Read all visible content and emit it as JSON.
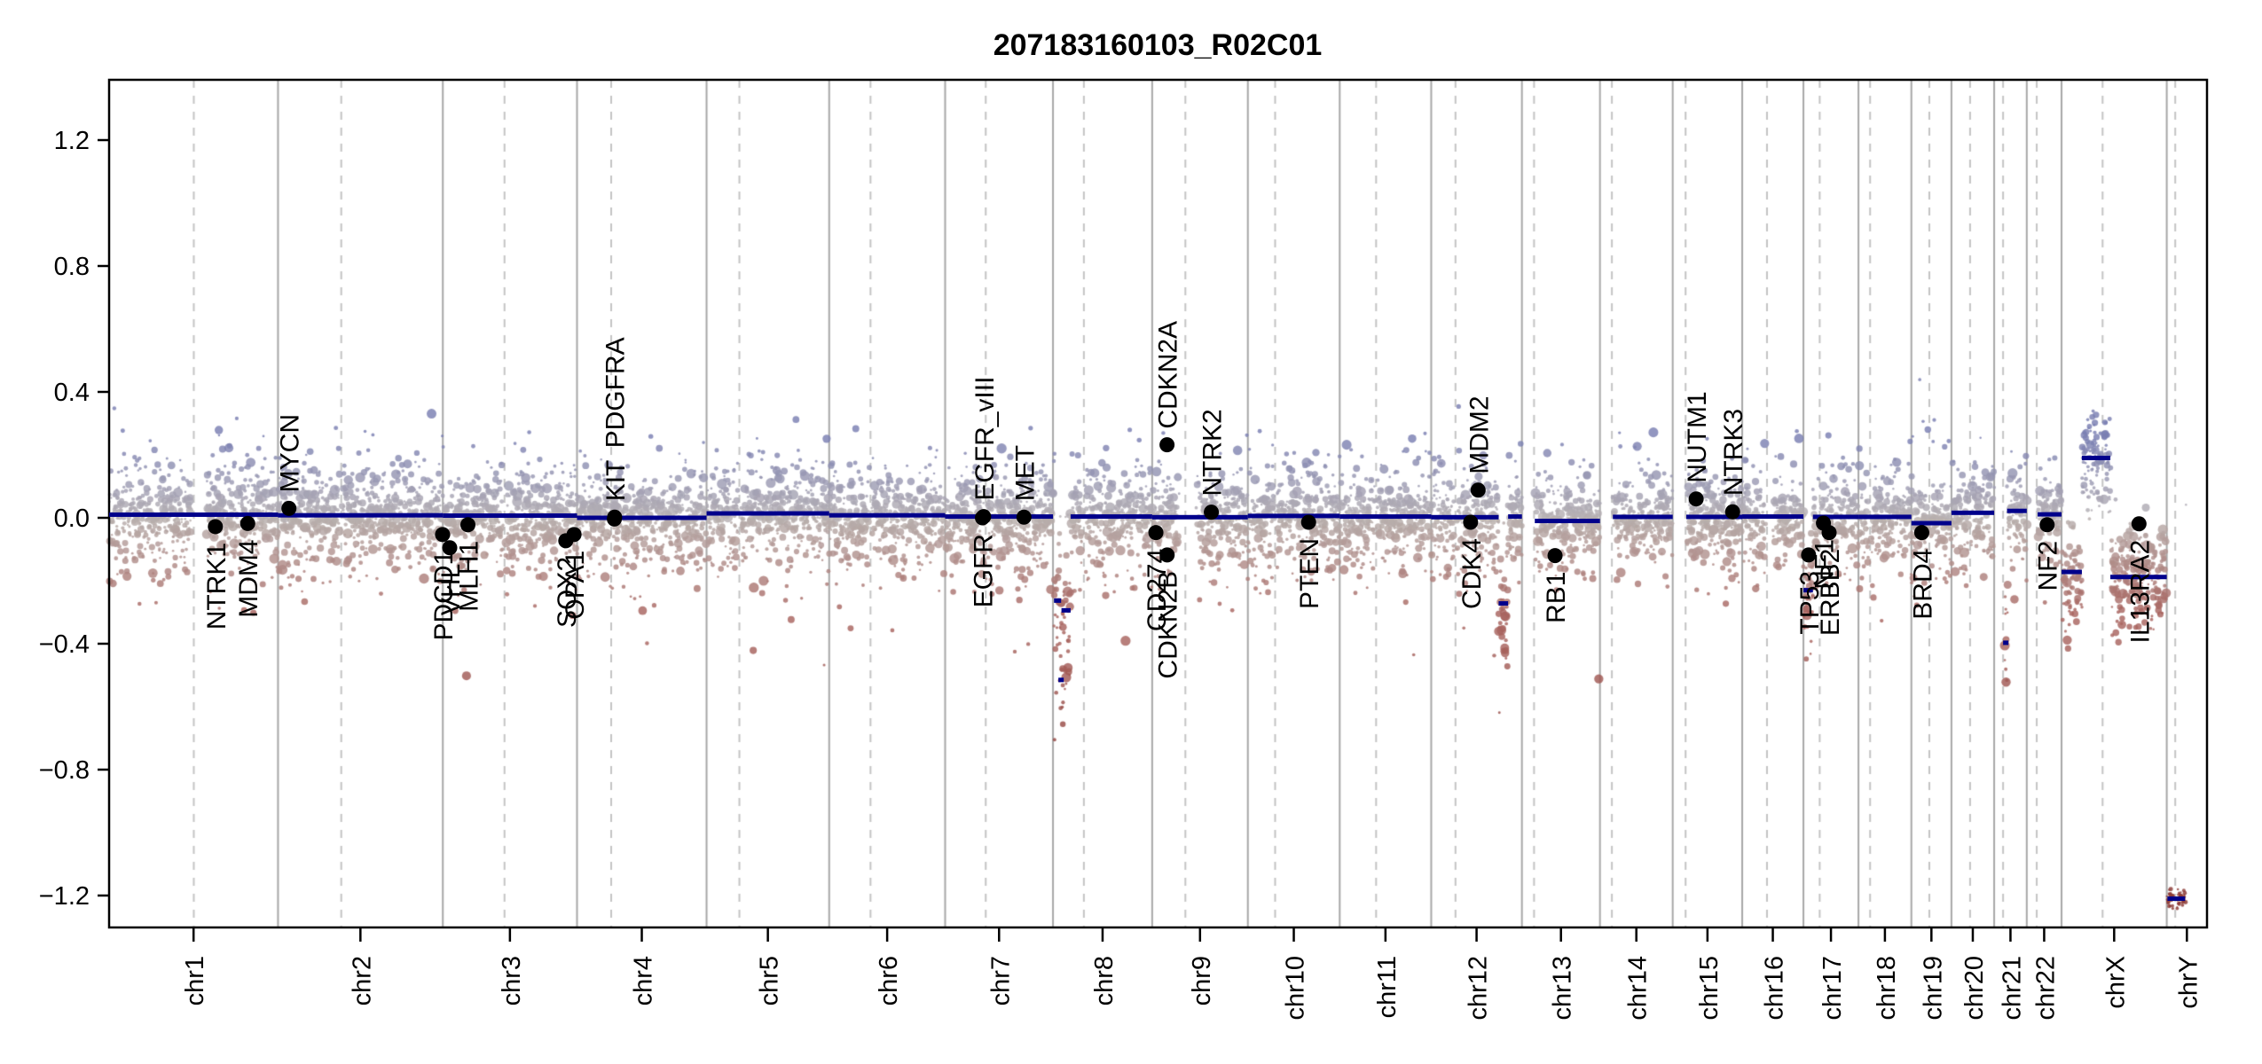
{
  "chart_data": {
    "type": "scatter",
    "title": "207183160103_R02C01",
    "xlabel": "",
    "ylabel": "",
    "ylim": [
      -1.35,
      1.35
    ],
    "grid": "chromosome-boundaries-solid, centromeres-dashed",
    "y_ticks": [
      {
        "label": "1.2",
        "value": 1.2
      },
      {
        "label": "0.8",
        "value": 0.8
      },
      {
        "label": "0.4",
        "value": 0.4
      },
      {
        "label": "0.0",
        "value": 0.0
      },
      {
        "label": "−0.4",
        "value": -0.4
      },
      {
        "label": "−0.8",
        "value": -0.8
      },
      {
        "label": "−1.2",
        "value": -1.2
      }
    ],
    "genome": [
      {
        "name": "chr1",
        "length_mb": 249.25,
        "centromere_mb": 125.0
      },
      {
        "name": "chr2",
        "length_mb": 243.2,
        "centromere_mb": 93.3
      },
      {
        "name": "chr3",
        "length_mb": 198.02,
        "centromere_mb": 91.0
      },
      {
        "name": "chr4",
        "length_mb": 191.15,
        "centromere_mb": 50.4
      },
      {
        "name": "chr5",
        "length_mb": 180.92,
        "centromere_mb": 48.4
      },
      {
        "name": "chr6",
        "length_mb": 171.12,
        "centromere_mb": 61.0
      },
      {
        "name": "chr7",
        "length_mb": 159.14,
        "centromere_mb": 59.9
      },
      {
        "name": "chr8",
        "length_mb": 146.36,
        "centromere_mb": 45.6
      },
      {
        "name": "chr9",
        "length_mb": 141.21,
        "centromere_mb": 49.0
      },
      {
        "name": "chr10",
        "length_mb": 135.53,
        "centromere_mb": 40.2
      },
      {
        "name": "chr11",
        "length_mb": 135.01,
        "centromere_mb": 53.7
      },
      {
        "name": "chr12",
        "length_mb": 133.85,
        "centromere_mb": 35.8
      },
      {
        "name": "chr13",
        "length_mb": 115.17,
        "centromere_mb": 17.9
      },
      {
        "name": "chr14",
        "length_mb": 107.35,
        "centromere_mb": 17.6
      },
      {
        "name": "chr15",
        "length_mb": 102.53,
        "centromere_mb": 19.0
      },
      {
        "name": "chr16",
        "length_mb": 90.35,
        "centromere_mb": 36.6
      },
      {
        "name": "chr17",
        "length_mb": 81.2,
        "centromere_mb": 24.0
      },
      {
        "name": "chr18",
        "length_mb": 78.08,
        "centromere_mb": 17.2
      },
      {
        "name": "chr19",
        "length_mb": 59.13,
        "centromere_mb": 26.5
      },
      {
        "name": "chr20",
        "length_mb": 63.03,
        "centromere_mb": 27.5
      },
      {
        "name": "chr21",
        "length_mb": 48.13,
        "centromere_mb": 13.2
      },
      {
        "name": "chr22",
        "length_mb": 51.3,
        "centromere_mb": 14.7
      },
      {
        "name": "chrX",
        "length_mb": 155.27,
        "centromere_mb": 60.6
      },
      {
        "name": "chrY",
        "length_mb": 59.37,
        "centromere_mb": 12.5
      }
    ],
    "probe_gaps": [
      {
        "chr": "chr1",
        "start": 120.5,
        "end": 143.5
      },
      {
        "chr": "chr9",
        "start": 38.8,
        "end": 66.0
      },
      {
        "chr": "chr16",
        "start": 34.5,
        "end": 46.5
      },
      {
        "chr": "chr13",
        "start": 0,
        "end": 19.0
      },
      {
        "chr": "chr14",
        "start": 0,
        "end": 19.0
      },
      {
        "chr": "chr15",
        "start": 0,
        "end": 20.0
      },
      {
        "chr": "chr21",
        "start": 0,
        "end": 12.5
      },
      {
        "chr": "chr22",
        "start": 0,
        "end": 16.0
      },
      {
        "chr": "chrY",
        "start": 0,
        "end": 1.0
      },
      {
        "chr": "chrY",
        "start": 27.5,
        "end": 59.37
      }
    ],
    "segments": [
      {
        "chr": "chr1",
        "start": 0,
        "end": 249.25,
        "value": 0.01
      },
      {
        "chr": "chr2",
        "start": 0,
        "end": 243.2,
        "value": 0.008
      },
      {
        "chr": "chr3",
        "start": 0,
        "end": 198.02,
        "value": 0.007
      },
      {
        "chr": "chr4",
        "start": 0,
        "end": 191.15,
        "value": 0.0
      },
      {
        "chr": "chr5",
        "start": 0,
        "end": 180.92,
        "value": 0.014
      },
      {
        "chr": "chr6",
        "start": 0,
        "end": 171.12,
        "value": 0.008
      },
      {
        "chr": "chr7",
        "start": 0,
        "end": 159.14,
        "value": 0.004
      },
      {
        "chr": "chr8",
        "start": 1.5,
        "end": 12.0,
        "value": -0.263
      },
      {
        "chr": "chr8",
        "start": 8.0,
        "end": 14.0,
        "value": -0.515
      },
      {
        "chr": "chr8",
        "start": 12.5,
        "end": 26.0,
        "value": -0.294
      },
      {
        "chr": "chr8",
        "start": 26.0,
        "end": 146.36,
        "value": 0.004
      },
      {
        "chr": "chr9",
        "start": 0,
        "end": 141.21,
        "value": 0.002
      },
      {
        "chr": "chr10",
        "start": 0,
        "end": 135.53,
        "value": 0.006
      },
      {
        "chr": "chr11",
        "start": 0,
        "end": 135.01,
        "value": 0.004
      },
      {
        "chr": "chr12",
        "start": 0,
        "end": 99.5,
        "value": 0.002
      },
      {
        "chr": "chr12",
        "start": 99.5,
        "end": 113.5,
        "value": -0.272
      },
      {
        "chr": "chr12",
        "start": 113.5,
        "end": 133.85,
        "value": 0.004
      },
      {
        "chr": "chr13",
        "start": 19.0,
        "end": 115.17,
        "value": -0.01
      },
      {
        "chr": "chr14",
        "start": 19.0,
        "end": 107.35,
        "value": 0.003
      },
      {
        "chr": "chr15",
        "start": 20.0,
        "end": 102.53,
        "value": 0.003
      },
      {
        "chr": "chr16",
        "start": 0,
        "end": 90.35,
        "value": 0.004
      },
      {
        "chr": "chr17",
        "start": 0,
        "end": 14.0,
        "value": -0.23
      },
      {
        "chr": "chr17",
        "start": 14.0,
        "end": 81.2,
        "value": 0.003
      },
      {
        "chr": "chr18",
        "start": 0,
        "end": 78.08,
        "value": 0.003
      },
      {
        "chr": "chr19",
        "start": 0,
        "end": 59.13,
        "value": -0.017
      },
      {
        "chr": "chr20",
        "start": 0,
        "end": 63.03,
        "value": 0.016
      },
      {
        "chr": "chr21",
        "start": 13.2,
        "end": 19.0,
        "value": -0.397
      },
      {
        "chr": "chr21",
        "start": 19.0,
        "end": 48.13,
        "value": 0.022
      },
      {
        "chr": "chr22",
        "start": 16.0,
        "end": 51.3,
        "value": 0.011
      },
      {
        "chr": "chrX",
        "start": 0,
        "end": 30.0,
        "value": -0.172
      },
      {
        "chr": "chrX",
        "start": 30.0,
        "end": 72.0,
        "value": 0.19
      },
      {
        "chr": "chrX",
        "start": 72.0,
        "end": 155.27,
        "value": -0.188
      },
      {
        "chr": "chrY",
        "start": 1.0,
        "end": 27.0,
        "value": -1.21
      }
    ],
    "gene_markers": [
      {
        "name": "NTRK1",
        "chr": "chr1",
        "mb": 156.8,
        "value": -0.028,
        "label": "below"
      },
      {
        "name": "MDM4",
        "chr": "chr1",
        "mb": 204.5,
        "value": -0.018,
        "label": "below"
      },
      {
        "name": "MYCN",
        "chr": "chr2",
        "mb": 16.1,
        "value": 0.03,
        "label": "above"
      },
      {
        "name": "PDCD1",
        "chr": "chr2",
        "mb": 242.8,
        "value": -0.053,
        "label": "below"
      },
      {
        "name": "VHL",
        "chr": "chr3",
        "mb": 10.2,
        "value": -0.095,
        "label": "below"
      },
      {
        "name": "MLH1",
        "chr": "chr3",
        "mb": 37.0,
        "value": -0.022,
        "label": "below"
      },
      {
        "name": "SOX2",
        "chr": "chr3",
        "mb": 181.4,
        "value": -0.073,
        "label": "below"
      },
      {
        "name": "OPA1",
        "chr": "chr3",
        "mb": 193.6,
        "value": -0.053,
        "label": "below"
      },
      {
        "name": "PDGFRA",
        "chr": "chr4",
        "mb": 55.1,
        "value": -0.004,
        "label": "above",
        "label_gap": 80
      },
      {
        "name": "KIT",
        "chr": "chr4",
        "mb": 55.5,
        "value": 0.002,
        "label": "above"
      },
      {
        "name": "EGFR",
        "chr": "chr7",
        "mb": 55.0,
        "value": 0.0,
        "label": "below"
      },
      {
        "name": "EGFR_vIII",
        "chr": "chr7",
        "mb": 56.8,
        "value": 0.004,
        "label": "above"
      },
      {
        "name": "MET",
        "chr": "chr7",
        "mb": 116.3,
        "value": 0.002,
        "label": "above"
      },
      {
        "name": "CD274",
        "chr": "chr9",
        "mb": 5.5,
        "value": -0.047,
        "label": "below"
      },
      {
        "name": "CDKN2A",
        "chr": "chr9",
        "mb": 21.9,
        "value": 0.232,
        "label": "above"
      },
      {
        "name": "CDKN2B",
        "chr": "chr9",
        "mb": 22.1,
        "value": -0.118,
        "label": "below"
      },
      {
        "name": "NTRK2",
        "chr": "chr9",
        "mb": 87.3,
        "value": 0.018,
        "label": "above"
      },
      {
        "name": "PTEN",
        "chr": "chr10",
        "mb": 89.6,
        "value": -0.014,
        "label": "below"
      },
      {
        "name": "CDK4",
        "chr": "chr12",
        "mb": 58.1,
        "value": -0.014,
        "label": "below"
      },
      {
        "name": "MDM2",
        "chr": "chr12",
        "mb": 69.2,
        "value": 0.088,
        "label": "above"
      },
      {
        "name": "RB1",
        "chr": "chr13",
        "mb": 48.9,
        "value": -0.12,
        "label": "below"
      },
      {
        "name": "NUTM1",
        "chr": "chr15",
        "mb": 34.6,
        "value": 0.06,
        "label": "above"
      },
      {
        "name": "NTRK3",
        "chr": "chr15",
        "mb": 88.4,
        "value": 0.019,
        "label": "above"
      },
      {
        "name": "TP53",
        "chr": "chr17",
        "mb": 7.6,
        "value": -0.118,
        "label": "below"
      },
      {
        "name": "NF1",
        "chr": "chr17",
        "mb": 29.5,
        "value": -0.017,
        "label": "below"
      },
      {
        "name": "ERBB2",
        "chr": "chr17",
        "mb": 37.9,
        "value": -0.047,
        "label": "below"
      },
      {
        "name": "BRD4",
        "chr": "chr19",
        "mb": 15.3,
        "value": -0.047,
        "label": "below"
      },
      {
        "name": "NF2",
        "chr": "chr22",
        "mb": 30.0,
        "value": -0.022,
        "label": "below"
      },
      {
        "name": "IL13RA2",
        "chr": "chrX",
        "mb": 114.3,
        "value": -0.019,
        "label": "below"
      }
    ],
    "scatter_profile": {
      "band_sd_core": 0.05,
      "band_sd_mid": 0.095,
      "tail_min": 0.1,
      "tail_down_bias": 0.62,
      "clusters": [
        {
          "chr": "chr8",
          "start": 0.5,
          "end": 26.0,
          "sd": 0.115,
          "deep_frac": 0.2,
          "deep_max": 0.28
        },
        {
          "chr": "chr12",
          "start": 99.5,
          "end": 113.5,
          "sd": 0.095,
          "deep_frac": 0.18,
          "deep_max": 0.22
        },
        {
          "chr": "chr16",
          "start": 83.0,
          "end": 90.35,
          "sd": 0.085,
          "deep_frac": 0.15,
          "deep_max": 0.18
        },
        {
          "chr": "chr17",
          "start": 0,
          "end": 14.0,
          "sd": 0.085,
          "deep_frac": 0.15,
          "deep_max": 0.18
        },
        {
          "chr": "chr21",
          "start": 13.2,
          "end": 19.0,
          "sd": 0.09,
          "deep_frac": 0.15,
          "deep_max": 0.17
        },
        {
          "chr": "chr22",
          "start": 16.0,
          "end": 24.0,
          "sd": 0.08,
          "deep_frac": 0.1,
          "deep_max": 0.12
        },
        {
          "chr": "chrX",
          "start": 0,
          "end": 30.0,
          "sd": 0.085,
          "deep_frac": 0.12,
          "deep_max": 0.12
        },
        {
          "chr": "chrX",
          "start": 30.0,
          "end": 72.0,
          "sd": 0.08,
          "deep_frac": 0.0,
          "deep_max": 0.0
        },
        {
          "chr": "chrX",
          "start": 72.0,
          "end": 155.27,
          "sd": 0.085,
          "deep_frac": 0.1,
          "deep_max": 0.1
        },
        {
          "chr": "chrY",
          "start": 1.0,
          "end": 27.0,
          "sd": 0.018,
          "deep_frac": 0.0,
          "deep_max": 0.0
        }
      ]
    },
    "colors": {
      "background": "#ffffff",
      "segment": "#00008b",
      "gain": "#7a7fb2",
      "neutral_pos": "#b8b2b4",
      "neutral_neg": "#b8b0ae",
      "loss": "#a8645f",
      "deep_loss": "#8c3a36",
      "grid_solid": "#a8a8a8",
      "grid_dashed": "#c4c4c4",
      "gene_dot": "#000000",
      "axis": "#000000"
    }
  }
}
